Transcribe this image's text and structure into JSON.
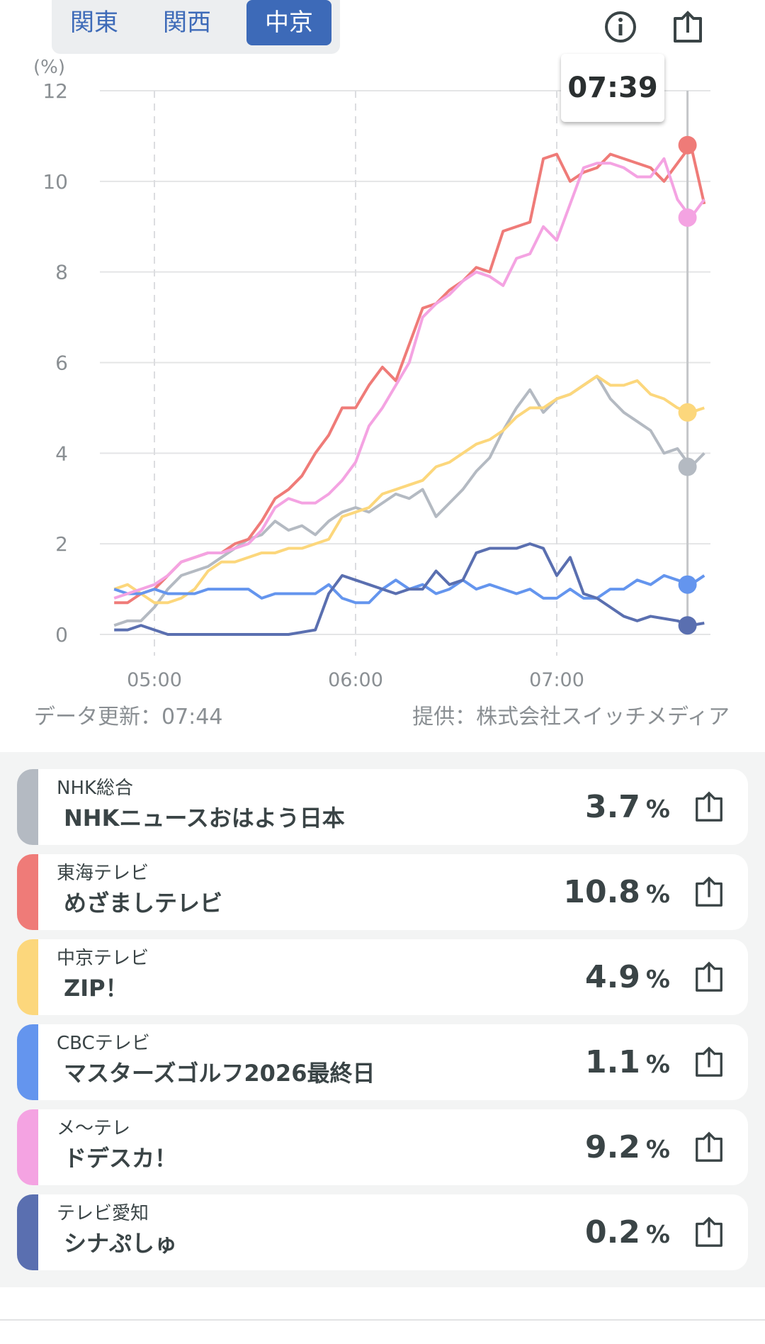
{
  "tabs": [
    {
      "label": "関東",
      "active": false
    },
    {
      "label": "関西",
      "active": false
    },
    {
      "label": "中京",
      "active": true
    }
  ],
  "icons": {
    "info": "info-icon",
    "share": "share-icon"
  },
  "tooltip": "07:39",
  "footer": {
    "updated": "データ更新：07:44",
    "provider": "提供：株式会社スイッチメディア"
  },
  "chart_data": {
    "type": "line",
    "ylabel": "(%)",
    "ylim": [
      0,
      12
    ],
    "yticks": [
      "0",
      "2",
      "4",
      "6",
      "8",
      "10",
      "12"
    ],
    "xticks": [
      "05:00",
      "06:00",
      "07:00"
    ],
    "grid": true,
    "cursor_time": "07:39",
    "x": [
      "04:48",
      "04:52",
      "04:56",
      "05:00",
      "05:04",
      "05:08",
      "05:12",
      "05:16",
      "05:20",
      "05:24",
      "05:28",
      "05:32",
      "05:36",
      "05:40",
      "05:44",
      "05:48",
      "05:52",
      "05:56",
      "06:00",
      "06:04",
      "06:08",
      "06:12",
      "06:16",
      "06:20",
      "06:24",
      "06:28",
      "06:32",
      "06:36",
      "06:40",
      "06:44",
      "06:48",
      "06:52",
      "06:56",
      "07:00",
      "07:04",
      "07:08",
      "07:12",
      "07:16",
      "07:20",
      "07:24",
      "07:28",
      "07:32",
      "07:36",
      "07:40",
      "07:44"
    ],
    "series": [
      {
        "name": "NHK総合",
        "color": "#b4bac2",
        "cursor_value": 3.7,
        "values": [
          0.2,
          0.3,
          0.3,
          0.6,
          1.0,
          1.3,
          1.4,
          1.5,
          1.7,
          1.9,
          2.1,
          2.2,
          2.5,
          2.3,
          2.4,
          2.2,
          2.5,
          2.7,
          2.8,
          2.7,
          2.9,
          3.1,
          3.0,
          3.2,
          2.6,
          2.9,
          3.2,
          3.6,
          3.9,
          4.5,
          5.0,
          5.4,
          4.9,
          5.2,
          5.3,
          5.5,
          5.7,
          5.2,
          4.9,
          4.7,
          4.5,
          4.0,
          4.1,
          3.7,
          4.0
        ]
      },
      {
        "name": "東海テレビ",
        "color": "#ef7b78",
        "cursor_value": 10.8,
        "values": [
          0.7,
          0.7,
          0.9,
          1.0,
          1.3,
          1.6,
          1.7,
          1.8,
          1.8,
          2.0,
          2.1,
          2.5,
          3.0,
          3.2,
          3.5,
          4.0,
          4.4,
          5.0,
          5.0,
          5.5,
          5.9,
          5.6,
          6.4,
          7.2,
          7.3,
          7.6,
          7.8,
          8.1,
          8.0,
          8.9,
          9.0,
          9.1,
          10.5,
          10.6,
          10.0,
          10.2,
          10.3,
          10.6,
          10.5,
          10.4,
          10.3,
          10.0,
          10.4,
          10.8,
          9.5
        ]
      },
      {
        "name": "中京テレビ",
        "color": "#fcd77c",
        "cursor_value": 4.9,
        "values": [
          1.0,
          1.1,
          0.9,
          0.7,
          0.7,
          0.8,
          1.0,
          1.4,
          1.6,
          1.6,
          1.7,
          1.8,
          1.8,
          1.9,
          1.9,
          2.0,
          2.1,
          2.6,
          2.7,
          2.8,
          3.1,
          3.2,
          3.3,
          3.4,
          3.7,
          3.8,
          4.0,
          4.2,
          4.3,
          4.5,
          4.8,
          5.0,
          5.0,
          5.2,
          5.3,
          5.5,
          5.7,
          5.5,
          5.5,
          5.6,
          5.3,
          5.2,
          5.0,
          4.9,
          5.0
        ]
      },
      {
        "name": "CBCテレビ",
        "color": "#6495ee",
        "cursor_value": 1.1,
        "values": [
          1.0,
          0.9,
          0.9,
          1.0,
          0.9,
          0.9,
          0.9,
          1.0,
          1.0,
          1.0,
          1.0,
          0.8,
          0.9,
          0.9,
          0.9,
          0.9,
          1.1,
          0.8,
          0.7,
          0.7,
          1.0,
          1.2,
          1.0,
          1.1,
          0.9,
          1.0,
          1.2,
          1.0,
          1.1,
          1.0,
          0.9,
          1.0,
          0.8,
          0.8,
          1.0,
          0.8,
          0.8,
          1.0,
          1.0,
          1.2,
          1.1,
          1.3,
          1.2,
          1.1,
          1.3
        ]
      },
      {
        "name": "メ～テレ",
        "color": "#f4a3e2",
        "cursor_value": 9.2,
        "values": [
          0.8,
          0.9,
          1.0,
          1.1,
          1.3,
          1.6,
          1.7,
          1.8,
          1.8,
          1.9,
          2.0,
          2.3,
          2.8,
          3.0,
          2.9,
          2.9,
          3.1,
          3.4,
          3.8,
          4.6,
          5.0,
          5.5,
          6.0,
          7.0,
          7.3,
          7.5,
          7.8,
          8.0,
          7.9,
          7.7,
          8.3,
          8.4,
          9.0,
          8.7,
          9.5,
          10.3,
          10.4,
          10.4,
          10.3,
          10.1,
          10.1,
          10.5,
          9.6,
          9.2,
          9.6
        ]
      },
      {
        "name": "テレビ愛知",
        "color": "#5a6fb0",
        "cursor_value": 0.2,
        "values": [
          0.1,
          0.1,
          0.2,
          0.1,
          0,
          0,
          0,
          0,
          0,
          0,
          0,
          0,
          0,
          0,
          0.05,
          0.1,
          0.9,
          1.3,
          1.2,
          1.1,
          1.0,
          0.9,
          1.0,
          1.0,
          1.4,
          1.1,
          1.2,
          1.8,
          1.9,
          1.9,
          1.9,
          2.0,
          1.9,
          1.3,
          1.7,
          0.9,
          0.8,
          0.6,
          0.4,
          0.3,
          0.4,
          0.35,
          0.3,
          0.2,
          0.25
        ]
      }
    ]
  },
  "cards": [
    {
      "channel": "NHK総合",
      "program": "NHKニュースおはよう日本",
      "value": "3.7",
      "unit": "%",
      "color": "#b4bac2"
    },
    {
      "channel": "東海テレビ",
      "program": "めざましテレビ",
      "value": "10.8",
      "unit": "%",
      "color": "#ef7b78"
    },
    {
      "channel": "中京テレビ",
      "program": "ZIP！",
      "value": "4.9",
      "unit": "%",
      "color": "#fcd77c"
    },
    {
      "channel": "CBCテレビ",
      "program": "マスターズゴルフ2026最終日",
      "value": "1.1",
      "unit": "%",
      "color": "#6495ee"
    },
    {
      "channel": "メ～テレ",
      "program": "ドデスカ！",
      "value": "9.2",
      "unit": "%",
      "color": "#f4a3e2"
    },
    {
      "channel": "テレビ愛知",
      "program": "シナぷしゅ",
      "value": "0.2",
      "unit": "%",
      "color": "#5a6fb0"
    }
  ]
}
